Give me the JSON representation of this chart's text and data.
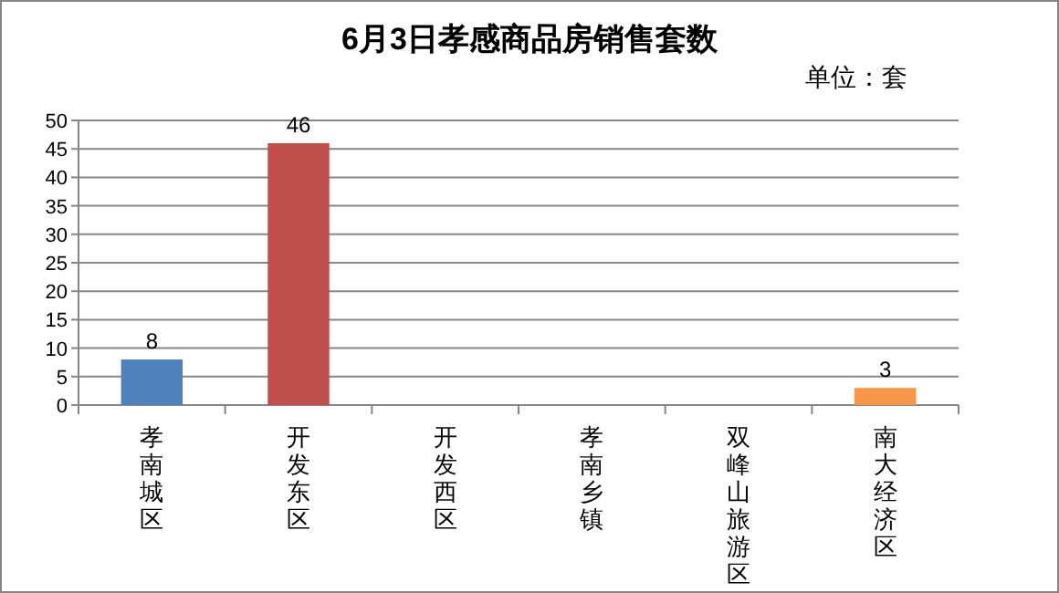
{
  "chart_data": {
    "type": "bar",
    "title": "6月3日孝感商品房销售套数",
    "annotations": [
      "单位：套"
    ],
    "categories": [
      "孝南城区",
      "开发东区",
      "开发西区",
      "孝南乡镇",
      "双峰山旅游区",
      "南大经济区"
    ],
    "values": [
      8,
      46,
      0,
      0,
      0,
      3
    ],
    "colors": [
      "#4f81bd",
      "#c0504d",
      "#9bbb59",
      "#8064a2",
      "#4bacc6",
      "#f79646"
    ],
    "value_labels": [
      "8",
      "46",
      null,
      null,
      null,
      "3"
    ],
    "ylim": [
      0,
      50
    ],
    "yticks": [
      0,
      5,
      10,
      15,
      20,
      25,
      30,
      35,
      40,
      45,
      50
    ],
    "grid": "y"
  }
}
